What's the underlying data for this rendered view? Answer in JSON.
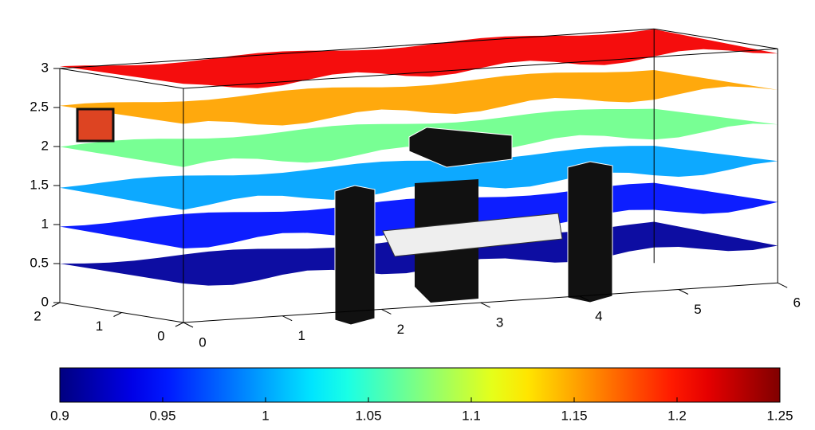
{
  "chart_data": {
    "type": "slice",
    "xlim": [
      0,
      6
    ],
    "xticks": [
      0,
      1,
      2,
      3,
      4,
      5,
      6
    ],
    "ylim": [
      0,
      2
    ],
    "yticks": [
      0,
      1,
      2
    ],
    "zlim": [
      0,
      3
    ],
    "zticks": [
      0,
      0.5,
      1,
      1.5,
      2,
      2.5,
      3
    ],
    "clim": [
      0.9,
      1.25
    ],
    "cticks": [
      0.9,
      0.95,
      1,
      1.05,
      1.1,
      1.15,
      1.2,
      1.25
    ],
    "colormap": "jet",
    "slices": [
      {
        "z": 0.5,
        "value": 0.91
      },
      {
        "z": 1,
        "value": 0.95
      },
      {
        "z": 1.5,
        "value": 1.0
      },
      {
        "z": 2,
        "value": 1.07
      },
      {
        "z": 2.5,
        "value": 1.15
      },
      {
        "z": 3,
        "value": 1.21
      }
    ]
  }
}
